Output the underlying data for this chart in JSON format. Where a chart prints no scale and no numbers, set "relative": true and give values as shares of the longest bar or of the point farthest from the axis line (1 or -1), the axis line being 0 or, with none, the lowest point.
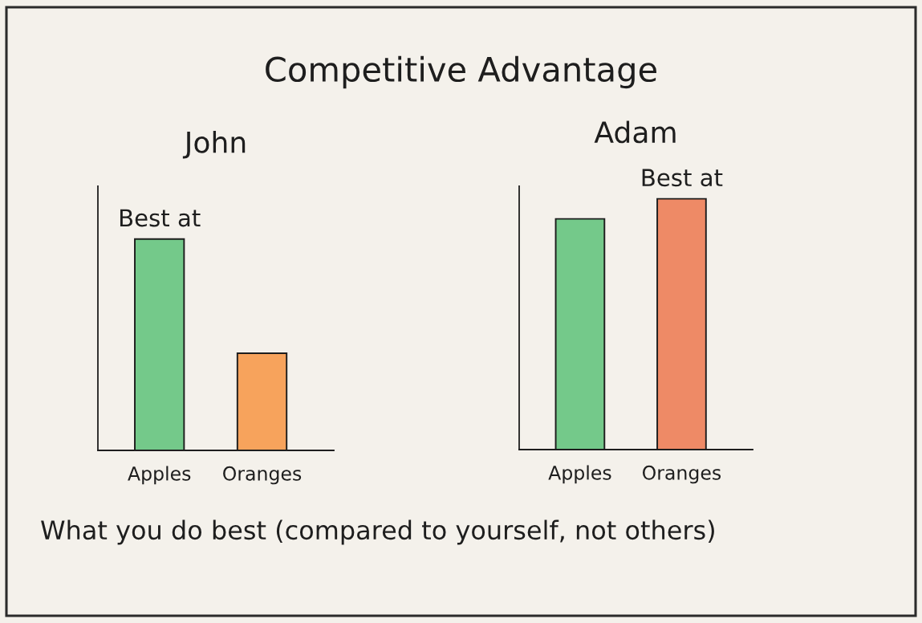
{
  "chart_data": [
    {
      "type": "other",
      "title": "Competitive Advantage",
      "annotations": [
        "What you do best (compared to yourself, not others)"
      ]
    },
    {
      "type": "bar",
      "title": "John",
      "relative": true,
      "categories": [
        "Apples",
        "Oranges"
      ],
      "values": [
        1,
        0.46
      ],
      "colors": [
        "#74c98a",
        "#f7a35c"
      ],
      "annotations": [
        {
          "text": "Best at",
          "x": "Apples",
          "y": 1
        }
      ]
    },
    {
      "type": "bar",
      "title": "Adam",
      "relative": true,
      "categories": [
        "Apples",
        "Oranges"
      ],
      "values": [
        0.92,
        1
      ],
      "colors": [
        "#74c98a",
        "#ee8a66"
      ],
      "annotations": [
        {
          "text": "Best at",
          "x": "Oranges",
          "y": 1
        }
      ]
    }
  ]
}
